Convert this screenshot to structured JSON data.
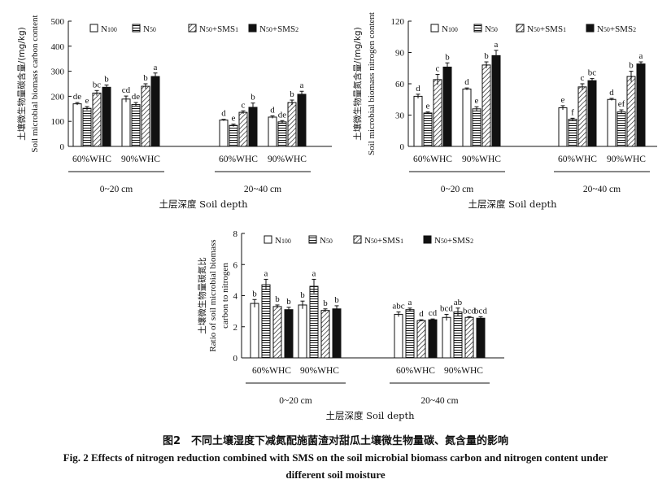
{
  "chart_data": [
    {
      "type": "bar",
      "id": "mbc",
      "ylabel_zh": "土壤微生物量碳含量/(mg/kg)",
      "ylabel_en": "Soil microbial biomass carbon content",
      "ylim": [
        0,
        500
      ],
      "yticks": [
        "0",
        "100",
        "200",
        "300",
        "400",
        "500"
      ],
      "legend": [
        "N100",
        "N50",
        "N50+SMS1",
        "N50+SMS2"
      ],
      "depths": [
        {
          "label": "0~20 cm",
          "groups": [
            {
              "label": "60%WHC",
              "values": [
                170,
                152,
                213,
                236
              ],
              "errors": [
                5,
                7,
                10,
                9
              ],
              "letters": [
                "de",
                "e",
                "bc",
                "b"
              ]
            },
            {
              "label": "90%WHC",
              "values": [
                189,
                167,
                240,
                279
              ],
              "errors": [
                12,
                8,
                10,
                14
              ],
              "letters": [
                "cd",
                "de",
                "b",
                "a"
              ]
            }
          ]
        },
        {
          "label": "20~40 cm",
          "groups": [
            {
              "label": "60%WHC",
              "values": [
                105,
                84,
                136,
                156
              ],
              "errors": [
                3,
                5,
                6,
                17
              ],
              "letters": [
                "d",
                "e",
                "c",
                "b"
              ]
            },
            {
              "label": "90%WHC",
              "values": [
                117,
                98,
                175,
                208
              ],
              "errors": [
                5,
                5,
                10,
                12
              ],
              "letters": [
                "d",
                "de",
                "b",
                "a"
              ]
            }
          ]
        }
      ],
      "xlabel": "土层深度 Soil depth"
    },
    {
      "type": "bar",
      "id": "mbn",
      "ylabel_zh": "土壤微生物量氮含量/(mg/kg)",
      "ylabel_en": "Soil microbial biomass nitrogen content",
      "ylim": [
        0,
        120
      ],
      "yticks": [
        "0",
        "30",
        "60",
        "90",
        "120"
      ],
      "legend": [
        "N100",
        "N50",
        "N50+SMS1",
        "N50+SMS2"
      ],
      "depths": [
        {
          "label": "0~20 cm",
          "groups": [
            {
              "label": "60%WHC",
              "values": [
                48,
                32,
                64,
                76
              ],
              "errors": [
                2,
                1,
                5,
                4
              ],
              "letters": [
                "d",
                "e",
                "c",
                "b"
              ]
            },
            {
              "label": "90%WHC",
              "values": [
                55,
                36,
                78,
                87
              ],
              "errors": [
                1,
                2,
                3,
                5
              ],
              "letters": [
                "d",
                "e",
                "b",
                "a"
              ]
            }
          ]
        },
        {
          "label": "20~40 cm",
          "groups": [
            {
              "label": "60%WHC",
              "values": [
                37,
                26,
                57,
                63
              ],
              "errors": [
                2,
                1,
                3,
                2
              ],
              "letters": [
                "e",
                "f",
                "c",
                "bc"
              ]
            },
            {
              "label": "90%WHC",
              "values": [
                45,
                33,
                67,
                79
              ],
              "errors": [
                1,
                2,
                5,
                2
              ],
              "letters": [
                "d",
                "ef",
                "b",
                "a"
              ]
            }
          ]
        }
      ],
      "xlabel": "土层深度 Soil depth"
    },
    {
      "type": "bar",
      "id": "ratio",
      "ylabel_zh": "土壤微生物量碳氮比",
      "ylabel_en1": "Ratio of soil microbial biomass",
      "ylabel_en2": "carbon to nitrogen",
      "ylim": [
        0,
        8
      ],
      "yticks": [
        "0",
        "2",
        "4",
        "6",
        "8"
      ],
      "legend": [
        "N100",
        "N50",
        "N50+SMS1",
        "N50+SMS2"
      ],
      "depths": [
        {
          "label": "0~20 cm",
          "groups": [
            {
              "label": "60%WHC",
              "values": [
                3.5,
                4.7,
                3.3,
                3.1
              ],
              "errors": [
                0.25,
                0.35,
                0.1,
                0.15
              ],
              "letters": [
                "b",
                "a",
                "b",
                "b"
              ]
            },
            {
              "label": "90%WHC",
              "values": [
                3.4,
                4.6,
                3.05,
                3.15
              ],
              "errors": [
                0.25,
                0.45,
                0.1,
                0.2
              ],
              "letters": [
                "b",
                "a",
                "b",
                "b"
              ]
            }
          ]
        },
        {
          "label": "20~40 cm",
          "groups": [
            {
              "label": "60%WHC",
              "values": [
                2.8,
                3.1,
                2.4,
                2.45
              ],
              "errors": [
                0.15,
                0.1,
                0.05,
                0.05
              ],
              "letters": [
                "abc",
                "a",
                "d",
                "cd"
              ]
            },
            {
              "label": "90%WHC",
              "values": [
                2.6,
                2.95,
                2.6,
                2.55
              ],
              "errors": [
                0.2,
                0.25,
                0.05,
                0.1
              ],
              "letters": [
                "bcd",
                "ab",
                "bcd",
                "bcd"
              ]
            }
          ]
        }
      ],
      "xlabel": "土层深度 Soil depth"
    }
  ],
  "caption": {
    "zh": "图2　不同土壤湿度下减氮配施菌渣对甜瓜土壤微生物量碳、氮含量的影响",
    "en_line1": "Fig. 2    Effects of nitrogen reduction combined with SMS on the soil microbial biomass carbon and nitrogen content under",
    "en_line2": "different soil moisture"
  },
  "colors": {
    "axis": "#111111",
    "bar_stroke": "#111111",
    "solid_fill": "#111111",
    "open_fill": "#ffffff"
  }
}
